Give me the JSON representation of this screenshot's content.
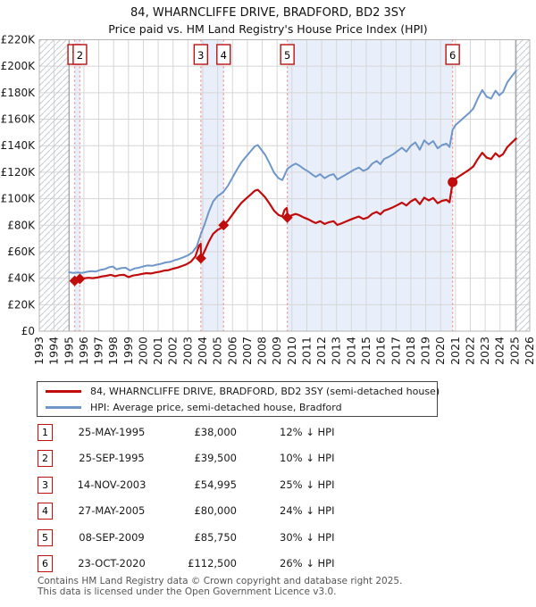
{
  "header": {
    "title": "84, WHARNCLIFFE DRIVE, BRADFORD, BD2 3SY",
    "subtitle": "Price paid vs. HM Land Registry's House Price Index (HPI)"
  },
  "chart_data": {
    "type": "line",
    "x_range": [
      1993,
      2026
    ],
    "y_max": 220,
    "y_ticks": [
      0,
      20,
      40,
      60,
      80,
      100,
      120,
      140,
      160,
      180,
      200,
      220
    ],
    "y_tick_labels": [
      "£0",
      "£20K",
      "£40K",
      "£60K",
      "£80K",
      "£100K",
      "£120K",
      "£140K",
      "£160K",
      "£180K",
      "£200K",
      "£220K"
    ],
    "x_ticks": [
      1993,
      1994,
      1995,
      1996,
      1997,
      1998,
      1999,
      2000,
      2001,
      2002,
      2003,
      2004,
      2005,
      2006,
      2007,
      2008,
      2009,
      2010,
      2011,
      2012,
      2013,
      2014,
      2015,
      2016,
      2017,
      2018,
      2019,
      2020,
      2021,
      2022,
      2023,
      2024,
      2025,
      2026
    ],
    "hatch_regions": [
      [
        1993,
        1995.0
      ],
      [
        2025.08,
        2026
      ]
    ],
    "bands": [
      [
        1995.38,
        1995.73
      ],
      [
        2003.87,
        2005.4
      ],
      [
        2009.69,
        2020.81
      ]
    ],
    "series": [
      {
        "name": "hpi",
        "color": "#6f96c8",
        "width": 2,
        "points": [
          [
            1995.0,
            44.5
          ],
          [
            1995.3,
            44.0
          ],
          [
            1995.6,
            44.3
          ],
          [
            1995.9,
            44.0
          ],
          [
            1996.2,
            44.8
          ],
          [
            1996.5,
            45.3
          ],
          [
            1996.8,
            45.0
          ],
          [
            1997.1,
            46.2
          ],
          [
            1997.4,
            46.8
          ],
          [
            1997.7,
            48.3
          ],
          [
            1997.95,
            48.8
          ],
          [
            1998.2,
            46.6
          ],
          [
            1998.5,
            47.6
          ],
          [
            1998.8,
            47.9
          ],
          [
            1999.1,
            45.8
          ],
          [
            1999.4,
            47.3
          ],
          [
            1999.7,
            47.9
          ],
          [
            2000.0,
            48.9
          ],
          [
            2000.3,
            49.6
          ],
          [
            2000.6,
            49.3
          ],
          [
            2000.9,
            50.2
          ],
          [
            2001.2,
            50.9
          ],
          [
            2001.5,
            51.9
          ],
          [
            2001.8,
            52.3
          ],
          [
            2002.1,
            53.6
          ],
          [
            2002.4,
            54.5
          ],
          [
            2002.7,
            55.8
          ],
          [
            2003.0,
            57.3
          ],
          [
            2003.3,
            59.5
          ],
          [
            2003.6,
            64.0
          ],
          [
            2003.87,
            73.3
          ],
          [
            2004.1,
            80.0
          ],
          [
            2004.4,
            90.0
          ],
          [
            2004.7,
            98.0
          ],
          [
            2005.0,
            102.0
          ],
          [
            2005.2,
            103.5
          ],
          [
            2005.4,
            105.3
          ],
          [
            2005.7,
            110.0
          ],
          [
            2006.0,
            116.0
          ],
          [
            2006.3,
            122.0
          ],
          [
            2006.6,
            127.5
          ],
          [
            2006.9,
            131.5
          ],
          [
            2007.2,
            135.5
          ],
          [
            2007.5,
            139.5
          ],
          [
            2007.7,
            140.5
          ],
          [
            2007.9,
            137.5
          ],
          [
            2008.2,
            133.0
          ],
          [
            2008.5,
            126.5
          ],
          [
            2008.8,
            119.5
          ],
          [
            2009.1,
            115.5
          ],
          [
            2009.35,
            114.0
          ],
          [
            2009.69,
            122.5
          ],
          [
            2010.0,
            125.0
          ],
          [
            2010.25,
            126.5
          ],
          [
            2010.5,
            125.0
          ],
          [
            2010.8,
            122.5
          ],
          [
            2011.1,
            120.5
          ],
          [
            2011.4,
            118.0
          ],
          [
            2011.6,
            116.5
          ],
          [
            2011.9,
            118.5
          ],
          [
            2012.2,
            115.5
          ],
          [
            2012.5,
            117.5
          ],
          [
            2012.8,
            118.5
          ],
          [
            2013.05,
            114.5
          ],
          [
            2013.3,
            116.0
          ],
          [
            2013.6,
            118.0
          ],
          [
            2013.9,
            120.0
          ],
          [
            2014.2,
            122.0
          ],
          [
            2014.5,
            123.5
          ],
          [
            2014.8,
            121.0
          ],
          [
            2015.1,
            122.5
          ],
          [
            2015.4,
            126.5
          ],
          [
            2015.7,
            128.5
          ],
          [
            2015.95,
            126.0
          ],
          [
            2016.2,
            130.0
          ],
          [
            2016.5,
            131.5
          ],
          [
            2016.8,
            133.5
          ],
          [
            2017.1,
            136.0
          ],
          [
            2017.4,
            138.5
          ],
          [
            2017.7,
            135.5
          ],
          [
            2018.0,
            140.0
          ],
          [
            2018.3,
            142.5
          ],
          [
            2018.6,
            137.0
          ],
          [
            2018.9,
            144.0
          ],
          [
            2019.2,
            141.0
          ],
          [
            2019.5,
            143.5
          ],
          [
            2019.8,
            138.0
          ],
          [
            2020.1,
            140.5
          ],
          [
            2020.4,
            141.5
          ],
          [
            2020.6,
            139.0
          ],
          [
            2020.81,
            152.0
          ],
          [
            2021.0,
            155.5
          ],
          [
            2021.3,
            158.5
          ],
          [
            2021.6,
            161.5
          ],
          [
            2021.9,
            164.5
          ],
          [
            2022.2,
            168.0
          ],
          [
            2022.5,
            175.5
          ],
          [
            2022.8,
            182.0
          ],
          [
            2023.1,
            177.0
          ],
          [
            2023.4,
            175.5
          ],
          [
            2023.7,
            181.5
          ],
          [
            2023.95,
            178.0
          ],
          [
            2024.2,
            180.5
          ],
          [
            2024.5,
            188.0
          ],
          [
            2024.8,
            192.5
          ],
          [
            2025.08,
            196.5
          ]
        ]
      },
      {
        "name": "property",
        "color": "#c00c0c",
        "width": 2.2,
        "points": [
          [
            1995.38,
            38.0
          ],
          [
            1995.73,
            39.5
          ],
          [
            1996.0,
            39.8
          ],
          [
            1996.3,
            40.3
          ],
          [
            1996.6,
            40.0
          ],
          [
            1996.9,
            40.5
          ],
          [
            1997.2,
            41.3
          ],
          [
            1997.5,
            41.8
          ],
          [
            1997.8,
            42.5
          ],
          [
            1998.1,
            41.5
          ],
          [
            1998.4,
            42.3
          ],
          [
            1998.7,
            42.5
          ],
          [
            1999.0,
            40.8
          ],
          [
            1999.3,
            42.0
          ],
          [
            1999.6,
            42.5
          ],
          [
            1999.9,
            43.2
          ],
          [
            2000.2,
            43.8
          ],
          [
            2000.5,
            43.5
          ],
          [
            2000.8,
            44.3
          ],
          [
            2001.1,
            44.9
          ],
          [
            2001.4,
            45.7
          ],
          [
            2001.7,
            46.1
          ],
          [
            2002.0,
            47.2
          ],
          [
            2002.3,
            48.0
          ],
          [
            2002.6,
            49.2
          ],
          [
            2002.9,
            50.5
          ],
          [
            2003.2,
            52.4
          ],
          [
            2003.5,
            56.4
          ],
          [
            2003.75,
            64.6
          ],
          [
            2003.86,
            66.0
          ],
          [
            2003.88,
            55.0
          ],
          [
            2004.1,
            60.0
          ],
          [
            2004.4,
            67.5
          ],
          [
            2004.7,
            73.5
          ],
          [
            2005.0,
            76.5
          ],
          [
            2005.2,
            77.6
          ],
          [
            2005.4,
            80.0
          ],
          [
            2005.7,
            83.5
          ],
          [
            2006.0,
            88.1
          ],
          [
            2006.3,
            92.7
          ],
          [
            2006.6,
            96.9
          ],
          [
            2006.9,
            99.9
          ],
          [
            2007.2,
            102.9
          ],
          [
            2007.5,
            106.0
          ],
          [
            2007.7,
            106.7
          ],
          [
            2007.9,
            104.5
          ],
          [
            2008.2,
            101.0
          ],
          [
            2008.5,
            96.1
          ],
          [
            2008.8,
            90.8
          ],
          [
            2009.1,
            87.7
          ],
          [
            2009.35,
            86.6
          ],
          [
            2009.5,
            91.5
          ],
          [
            2009.65,
            93.0
          ],
          [
            2009.68,
            90.0
          ],
          [
            2009.69,
            85.75
          ],
          [
            2010.0,
            87.5
          ],
          [
            2010.25,
            88.5
          ],
          [
            2010.5,
            87.5
          ],
          [
            2010.8,
            85.8
          ],
          [
            2011.1,
            84.4
          ],
          [
            2011.4,
            82.6
          ],
          [
            2011.6,
            81.6
          ],
          [
            2011.9,
            83.0
          ],
          [
            2012.2,
            80.9
          ],
          [
            2012.5,
            82.3
          ],
          [
            2012.8,
            83.0
          ],
          [
            2013.05,
            80.2
          ],
          [
            2013.3,
            81.2
          ],
          [
            2013.6,
            82.6
          ],
          [
            2013.9,
            84.0
          ],
          [
            2014.2,
            85.4
          ],
          [
            2014.5,
            86.5
          ],
          [
            2014.8,
            84.7
          ],
          [
            2015.1,
            85.8
          ],
          [
            2015.4,
            88.6
          ],
          [
            2015.7,
            90.0
          ],
          [
            2015.95,
            88.2
          ],
          [
            2016.2,
            91.0
          ],
          [
            2016.5,
            92.1
          ],
          [
            2016.8,
            93.5
          ],
          [
            2017.1,
            95.2
          ],
          [
            2017.4,
            97.0
          ],
          [
            2017.7,
            94.9
          ],
          [
            2018.0,
            98.0
          ],
          [
            2018.3,
            99.8
          ],
          [
            2018.6,
            95.9
          ],
          [
            2018.9,
            100.8
          ],
          [
            2019.2,
            98.7
          ],
          [
            2019.5,
            100.5
          ],
          [
            2019.8,
            96.6
          ],
          [
            2020.1,
            98.4
          ],
          [
            2020.4,
            99.1
          ],
          [
            2020.6,
            97.3
          ],
          [
            2020.81,
            112.5
          ],
          [
            2021.0,
            115.0
          ],
          [
            2021.3,
            117.3
          ],
          [
            2021.6,
            119.5
          ],
          [
            2021.9,
            121.7
          ],
          [
            2022.2,
            124.3
          ],
          [
            2022.5,
            129.9
          ],
          [
            2022.8,
            134.7
          ],
          [
            2023.1,
            131.0
          ],
          [
            2023.4,
            129.9
          ],
          [
            2023.7,
            134.3
          ],
          [
            2023.95,
            131.7
          ],
          [
            2024.2,
            133.6
          ],
          [
            2024.5,
            139.1
          ],
          [
            2024.8,
            142.4
          ],
          [
            2025.08,
            145.4
          ]
        ]
      }
    ],
    "sales": [
      {
        "num": 1,
        "x": 1995.38,
        "y": 38.0,
        "marker": "diamond"
      },
      {
        "num": 2,
        "x": 1995.73,
        "y": 39.5,
        "marker": "diamond"
      },
      {
        "num": 3,
        "x": 2003.87,
        "y": 55.0,
        "marker": "diamond"
      },
      {
        "num": 4,
        "x": 2005.4,
        "y": 80.0,
        "marker": "diamond"
      },
      {
        "num": 5,
        "x": 2009.69,
        "y": 85.75,
        "marker": "diamond"
      },
      {
        "num": 6,
        "x": 2020.81,
        "y": 112.5,
        "marker": "circle"
      }
    ],
    "colors": {
      "band": "#e9effa",
      "grid": "#d6d6d6",
      "hatch": "#c6cad2",
      "border": "#b3b3b3",
      "edge": "#8f8f8f",
      "sale_line": "#f39090",
      "box_border": "#bb1111",
      "box_fill": "#ffffff",
      "text": "#1a1a1a",
      "plot_bg": "#ffffff"
    }
  },
  "legend": {
    "items": [
      {
        "label": "84, WHARNCLIFFE DRIVE, BRADFORD, BD2 3SY (semi-detached house)",
        "color": "#c00c0c"
      },
      {
        "label": "HPI: Average price, semi-detached house, Bradford",
        "color": "#6f96c8"
      }
    ]
  },
  "table": {
    "rows": [
      {
        "num": 1,
        "date": "25-MAY-1995",
        "price": "£38,000",
        "hpi_diff": "12% ↓ HPI"
      },
      {
        "num": 2,
        "date": "25-SEP-1995",
        "price": "£39,500",
        "hpi_diff": "10% ↓ HPI"
      },
      {
        "num": 3,
        "date": "14-NOV-2003",
        "price": "£54,995",
        "hpi_diff": "25% ↓ HPI"
      },
      {
        "num": 4,
        "date": "27-MAY-2005",
        "price": "£80,000",
        "hpi_diff": "24% ↓ HPI"
      },
      {
        "num": 5,
        "date": "08-SEP-2009",
        "price": "£85,750",
        "hpi_diff": "30% ↓ HPI"
      },
      {
        "num": 6,
        "date": "23-OCT-2020",
        "price": "£112,500",
        "hpi_diff": "26% ↓ HPI"
      }
    ]
  },
  "footer": {
    "line1": "Contains HM Land Registry data © Crown copyright and database right 2025.",
    "line2": "This data is licensed under the Open Government Licence v3.0."
  }
}
